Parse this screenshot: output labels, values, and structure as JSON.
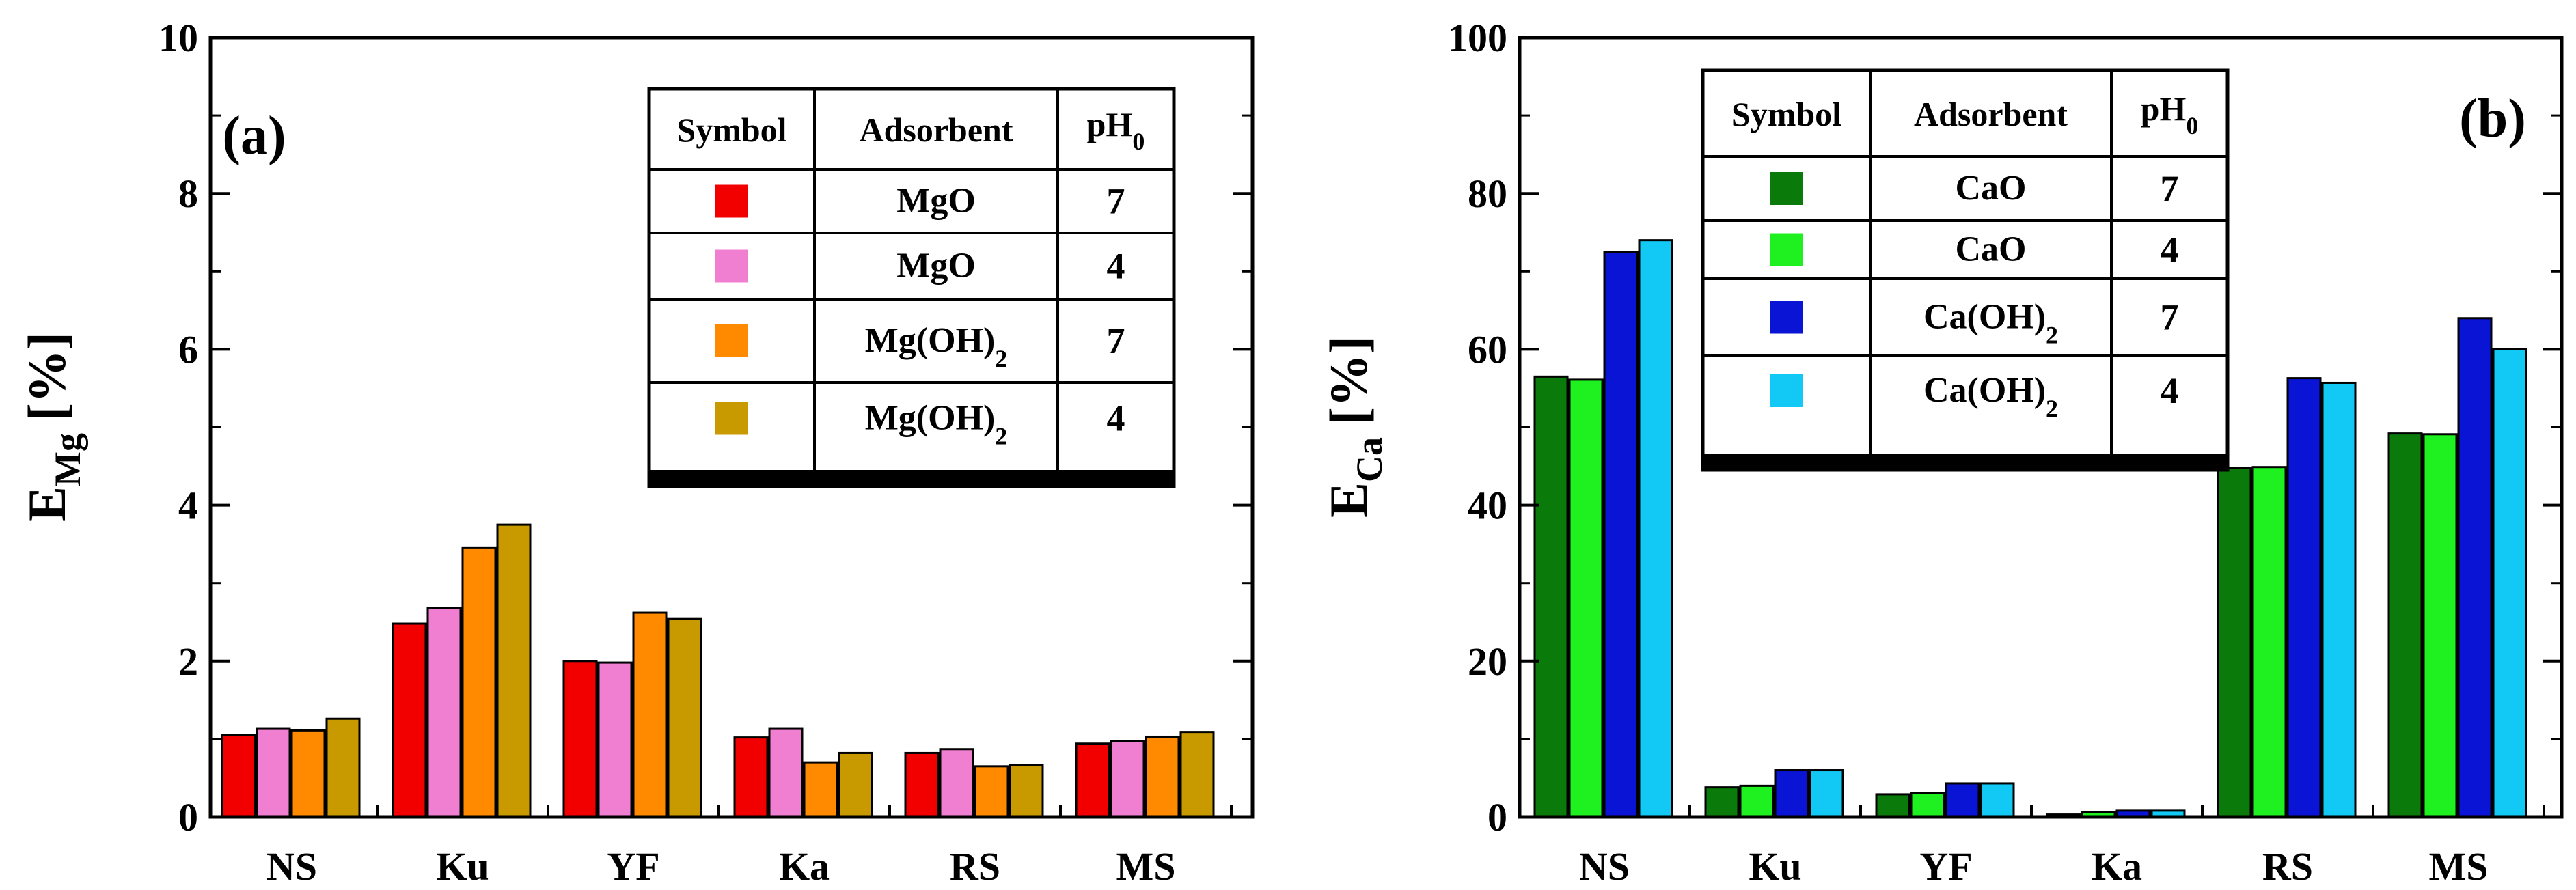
{
  "chart_data": [
    {
      "type": "bar",
      "panel_label": "(a)",
      "ylabel_main": "E",
      "ylabel_sub": "Mg",
      "ylabel_unit": "[%]",
      "ylim": [
        0,
        10
      ],
      "yticks": [
        "0",
        "2",
        "4",
        "6",
        "8",
        "10"
      ],
      "ytick_values": [
        0,
        2,
        4,
        6,
        8,
        10
      ],
      "categories": [
        "NS",
        "Ku",
        "YF",
        "Ka",
        "RS",
        "MS"
      ],
      "series": [
        {
          "color": "#f20000",
          "values": [
            1.05,
            2.48,
            2.0,
            1.02,
            0.82,
            0.94
          ]
        },
        {
          "color": "#f07fd2",
          "values": [
            1.13,
            2.68,
            1.98,
            1.13,
            0.87,
            0.97
          ]
        },
        {
          "color": "#ff8a00",
          "values": [
            1.11,
            3.45,
            2.62,
            0.7,
            0.65,
            1.03
          ]
        },
        {
          "color": "#c89a00",
          "values": [
            1.26,
            3.75,
            2.54,
            0.82,
            0.67,
            1.09
          ]
        }
      ],
      "legend": {
        "headers": [
          "Symbol",
          "Adsorbent",
          "pH"
        ],
        "header_sub": "0",
        "rows": [
          {
            "adsorbent": "MgO",
            "sub": "",
            "ph": "7"
          },
          {
            "adsorbent": "MgO",
            "sub": "",
            "ph": "4"
          },
          {
            "adsorbent": "Mg(OH)",
            "sub": "2",
            "ph": "7"
          },
          {
            "adsorbent": "Mg(OH)",
            "sub": "2",
            "ph": "4"
          }
        ]
      }
    },
    {
      "type": "bar",
      "panel_label": "(b)",
      "ylabel_main": "E",
      "ylabel_sub": "Ca",
      "ylabel_unit": "[%]",
      "ylim": [
        0,
        100
      ],
      "yticks": [
        "0",
        "20",
        "40",
        "60",
        "80",
        "100"
      ],
      "ytick_values": [
        0,
        20,
        40,
        60,
        80,
        100
      ],
      "categories": [
        "NS",
        "Ku",
        "YF",
        "Ka",
        "RS",
        "MS"
      ],
      "series": [
        {
          "color": "#0a7a0a",
          "values": [
            56.5,
            3.8,
            2.9,
            0.3,
            44.8,
            49.2
          ]
        },
        {
          "color": "#1ff01f",
          "values": [
            56.1,
            4.0,
            3.1,
            0.6,
            44.9,
            49.1
          ]
        },
        {
          "color": "#0a14d4",
          "values": [
            72.5,
            6.0,
            4.3,
            0.8,
            56.3,
            64.0
          ]
        },
        {
          "color": "#12c8f5",
          "values": [
            74.0,
            6.0,
            4.3,
            0.8,
            55.7,
            60.0
          ]
        }
      ],
      "legend": {
        "headers": [
          "Symbol",
          "Adsorbent",
          "pH"
        ],
        "header_sub": "0",
        "rows": [
          {
            "adsorbent": "CaO",
            "sub": "",
            "ph": "7"
          },
          {
            "adsorbent": "CaO",
            "sub": "",
            "ph": "4"
          },
          {
            "adsorbent": "Ca(OH)",
            "sub": "2",
            "ph": "7"
          },
          {
            "adsorbent": "Ca(OH)",
            "sub": "2",
            "ph": "4"
          }
        ]
      }
    }
  ]
}
